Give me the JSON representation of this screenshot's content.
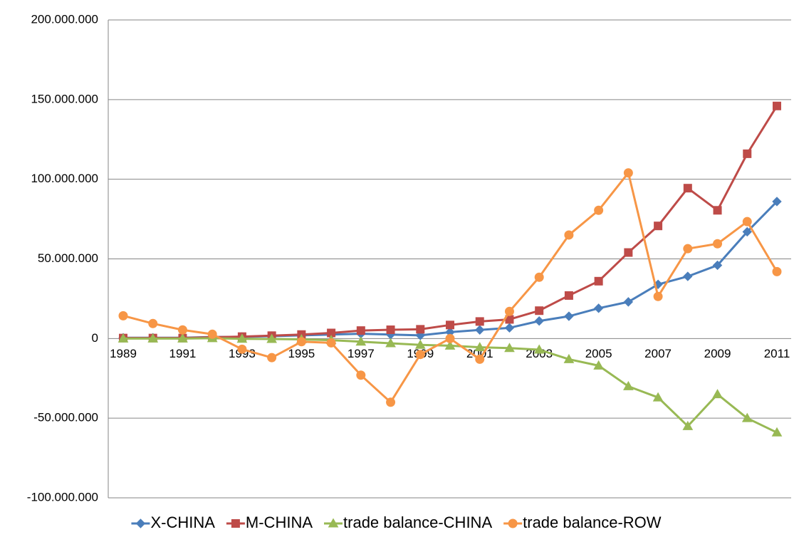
{
  "chart_data": {
    "type": "line",
    "categories": [
      "1989",
      null,
      "1991",
      null,
      "1993",
      null,
      "1995",
      null,
      "1997",
      null,
      "1999",
      null,
      "2001",
      null,
      "2003",
      null,
      "2005",
      null,
      "2007",
      null,
      "2009",
      null,
      "2011"
    ],
    "series": [
      {
        "name": "X-CHINA",
        "color": "#4a7ebb",
        "marker": "diamond",
        "values": [
          500000,
          500000,
          500000,
          1000000,
          1000000,
          1500000,
          2000000,
          2500000,
          3000000,
          2500000,
          2000000,
          4000000,
          5400000,
          6700000,
          11000000,
          14000000,
          19000000,
          23000000,
          34000000,
          39000000,
          46000000,
          67000000,
          86000000
        ]
      },
      {
        "name": "M-CHINA",
        "color": "#be4b48",
        "marker": "square",
        "values": [
          300000,
          300000,
          300000,
          800000,
          1200000,
          1800000,
          2500000,
          3500000,
          5000000,
          5500000,
          5800000,
          8500000,
          10700000,
          12000000,
          17500000,
          27000000,
          36000000,
          54000000,
          70700000,
          94400000,
          80500000,
          116000000,
          146000000
        ]
      },
      {
        "name": "trade balance-CHINA",
        "color": "#98b954",
        "marker": "triangle",
        "values": [
          0,
          0,
          0,
          200000,
          -200000,
          -300000,
          -500000,
          -1000000,
          -2000000,
          -3000000,
          -4000000,
          -4500000,
          -5500000,
          -6000000,
          -7000000,
          -13000000,
          -17000000,
          -30000000,
          -37000000,
          -55000000,
          -35000000,
          -50000000,
          -59000000
        ]
      },
      {
        "name": "trade balance-ROW",
        "color": "#f79646",
        "marker": "circle",
        "values": [
          14300000,
          9400000,
          5400000,
          2700000,
          -6700000,
          -12000000,
          -2000000,
          -2700000,
          -23000000,
          -40000000,
          -10000000,
          0,
          -13000000,
          17000000,
          38500000,
          65000000,
          80500000,
          104000000,
          26400000,
          56400000,
          59500000,
          73400000,
          42000000
        ]
      }
    ],
    "ylim": [
      -100000000,
      200000000
    ],
    "yticks": [
      {
        "value": -100000000,
        "label": "-100.000.000"
      },
      {
        "value": -50000000,
        "label": "-50.000.000"
      },
      0,
      {
        "value": 50000000,
        "label": "50.000.000"
      },
      {
        "value": 100000000,
        "label": "100.000.000"
      },
      {
        "value": 150000000,
        "label": "150.000.000"
      },
      {
        "value": 200000000,
        "label": "200.000.000"
      }
    ],
    "grid": true,
    "legend": "bottom"
  }
}
